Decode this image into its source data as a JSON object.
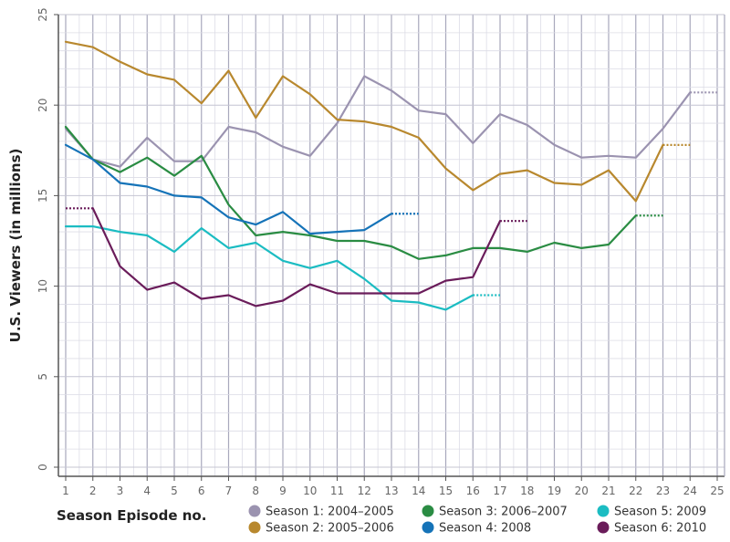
{
  "chart_data": {
    "type": "line",
    "title": "",
    "xlabel": "Season Episode no.",
    "ylabel": "U.S. Viewers (in millions)",
    "xlim": [
      1,
      25
    ],
    "ylim": [
      0,
      25
    ],
    "x_ticks": [
      1,
      2,
      3,
      4,
      5,
      6,
      7,
      8,
      9,
      10,
      11,
      12,
      13,
      14,
      15,
      16,
      17,
      18,
      19,
      20,
      21,
      22,
      23,
      24,
      25
    ],
    "y_ticks": [
      0,
      5,
      10,
      15,
      20,
      25
    ],
    "grid": true,
    "legend_position": "bottom-right",
    "series": [
      {
        "name": "Season 1: 2004–2005",
        "color": "#9b93b0",
        "x": [
          1,
          2,
          3,
          4,
          5,
          6,
          7,
          8,
          9,
          10,
          11,
          12,
          13,
          14,
          15,
          16,
          17,
          18,
          19,
          20,
          21,
          22,
          23,
          24
        ],
        "values": [
          18.7,
          17.0,
          16.6,
          18.2,
          16.9,
          16.9,
          18.8,
          18.5,
          17.7,
          17.2,
          19.0,
          21.6,
          20.8,
          19.7,
          19.5,
          17.9,
          19.5,
          18.9,
          17.8,
          17.1,
          17.2,
          17.1,
          18.7,
          20.7
        ],
        "dotted_to": {
          "x": 25,
          "value": 20.7
        }
      },
      {
        "name": "Season 2: 2005–2006",
        "color": "#b8882e",
        "x": [
          1,
          2,
          3,
          4,
          5,
          6,
          7,
          8,
          9,
          10,
          11,
          12,
          13,
          14,
          15,
          16,
          17,
          18,
          19,
          20,
          21,
          22,
          23
        ],
        "values": [
          23.5,
          23.2,
          22.4,
          21.7,
          21.4,
          20.1,
          21.9,
          19.3,
          21.6,
          20.6,
          19.2,
          19.1,
          18.8,
          18.2,
          16.5,
          15.3,
          16.2,
          16.4,
          15.7,
          15.6,
          16.4,
          14.7,
          17.8
        ],
        "dotted_to": {
          "x": 24,
          "value": 17.8
        }
      },
      {
        "name": "Season 3: 2006–2007",
        "color": "#2a8c43",
        "x": [
          1,
          2,
          3,
          4,
          5,
          6,
          7,
          8,
          9,
          10,
          11,
          12,
          13,
          14,
          15,
          16,
          17,
          18,
          19,
          20,
          21,
          22
        ],
        "values": [
          18.8,
          17.0,
          16.3,
          17.1,
          16.1,
          17.2,
          14.5,
          12.8,
          13.0,
          12.8,
          12.5,
          12.5,
          12.2,
          11.5,
          11.7,
          12.1,
          12.1,
          11.9,
          12.4,
          12.1,
          12.3,
          13.9
        ],
        "dotted_to": {
          "x": 23,
          "value": 13.9
        }
      },
      {
        "name": "Season 4: 2008",
        "color": "#1573b8",
        "x": [
          1,
          2,
          3,
          4,
          5,
          6,
          7,
          8,
          9,
          10,
          11,
          12,
          13
        ],
        "values": [
          17.8,
          17.0,
          15.7,
          15.5,
          15.0,
          14.9,
          13.8,
          13.4,
          14.1,
          12.9,
          13.0,
          13.1,
          14.0
        ],
        "dotted_to": {
          "x": 14,
          "value": 14.0
        }
      },
      {
        "name": "Season 5: 2009",
        "color": "#1bbcc2",
        "x": [
          1,
          2,
          3,
          4,
          5,
          6,
          7,
          8,
          9,
          10,
          11,
          12,
          13,
          14,
          15,
          16
        ],
        "values": [
          13.3,
          13.3,
          13.0,
          12.8,
          11.9,
          13.2,
          12.1,
          12.4,
          11.4,
          11.0,
          11.4,
          10.4,
          9.2,
          9.1,
          8.7,
          9.5
        ],
        "dotted_to": {
          "x": 17,
          "value": 9.5
        }
      },
      {
        "name": "Season 6: 2010",
        "color": "#6a1c5a",
        "x": [
          2,
          3,
          4,
          5,
          6,
          7,
          8,
          9,
          10,
          11,
          12,
          13,
          14,
          15,
          16,
          17
        ],
        "values": [
          14.3,
          11.1,
          9.8,
          10.2,
          9.3,
          9.5,
          8.9,
          9.2,
          10.1,
          9.6,
          9.6,
          9.6,
          9.6,
          10.3,
          10.5,
          13.6
        ],
        "dotted_from": {
          "x": 1,
          "value": 14.3
        },
        "dotted_to": {
          "x": 18,
          "value": 13.6
        }
      }
    ]
  }
}
